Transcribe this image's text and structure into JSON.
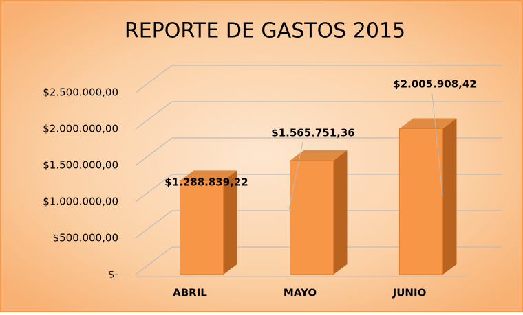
{
  "chart_data": {
    "type": "bar",
    "title": "REPORTE DE GASTOS 2015",
    "categories": [
      "ABRIL",
      "MAYO",
      "JUNIO"
    ],
    "values": [
      1288839.22,
      1565751.36,
      2005908.42
    ],
    "value_labels": [
      "$1.288.839,22",
      "$1.565.751,36",
      "$2.005.908,42"
    ],
    "color": "#f79646",
    "ylim": [
      0,
      2500000
    ],
    "yticks": [
      {
        "value": 0,
        "label": "$-"
      },
      {
        "value": 500000,
        "label": "$500.000,00"
      },
      {
        "value": 1000000,
        "label": "$1.000.000,00"
      },
      {
        "value": 1500000,
        "label": "$1.500.000,00"
      },
      {
        "value": 2000000,
        "label": "$2.000.000,00"
      },
      {
        "value": 2500000,
        "label": "$2.500.000,00"
      }
    ],
    "grid": true
  }
}
